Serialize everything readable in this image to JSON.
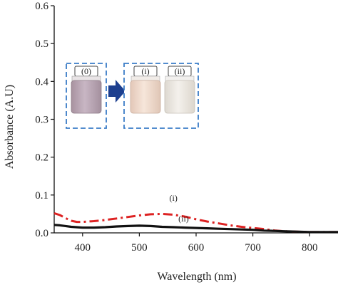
{
  "chart_data": {
    "type": "line",
    "xlabel": "Wavelength (nm)",
    "ylabel": "Absorbance (A.U)",
    "xlim": [
      350,
      850
    ],
    "ylim": [
      0,
      0.6
    ],
    "x_ticks": [
      "400",
      "500",
      "600",
      "700",
      "800"
    ],
    "y_ticks": [
      "0.0",
      "0.1",
      "0.2",
      "0.3",
      "0.4",
      "0.5",
      "0.6"
    ],
    "grid": false,
    "series": [
      {
        "name": "(i)",
        "color": "#dd2222",
        "style": "dash-dot",
        "x": [
          350,
          360,
          370,
          380,
          390,
          400,
          420,
          440,
          460,
          480,
          500,
          520,
          540,
          560,
          580,
          600,
          620,
          640,
          660,
          680,
          700,
          720,
          740,
          760,
          780,
          800,
          820,
          850
        ],
        "y": [
          0.052,
          0.047,
          0.039,
          0.032,
          0.029,
          0.029,
          0.031,
          0.034,
          0.038,
          0.042,
          0.046,
          0.049,
          0.05,
          0.048,
          0.043,
          0.036,
          0.03,
          0.025,
          0.02,
          0.016,
          0.013,
          0.01,
          0.006,
          0.004,
          0.003,
          0.002,
          0.002,
          0.002
        ]
      },
      {
        "name": "(ii)",
        "color": "#111111",
        "style": "solid",
        "x": [
          350,
          360,
          370,
          380,
          400,
          420,
          440,
          460,
          480,
          500,
          520,
          540,
          560,
          580,
          600,
          620,
          640,
          660,
          680,
          700,
          720,
          740,
          760,
          780,
          800,
          820,
          850
        ],
        "y": [
          0.021,
          0.02,
          0.018,
          0.016,
          0.014,
          0.014,
          0.015,
          0.017,
          0.018,
          0.019,
          0.018,
          0.016,
          0.015,
          0.014,
          0.013,
          0.012,
          0.011,
          0.01,
          0.009,
          0.008,
          0.006,
          0.005,
          0.004,
          0.003,
          0.002,
          0.002,
          0.002
        ]
      }
    ],
    "annotations": [
      {
        "text": "(i)",
        "x": 560,
        "y": 0.085,
        "series": "(i)"
      },
      {
        "text": "(ii)",
        "x": 578,
        "y": 0.03,
        "series": "(ii)"
      }
    ],
    "inset": {
      "vials": [
        {
          "label": "(0)",
          "liquid_color": "#bda8bb"
        },
        {
          "label": "(i)",
          "liquid_color": "#efd9cb"
        },
        {
          "label": "(ii)",
          "liquid_color": "#ece8e2"
        }
      ],
      "arrow_color": "#1d3f8f",
      "box_border_color": "#3a7cc7"
    }
  }
}
